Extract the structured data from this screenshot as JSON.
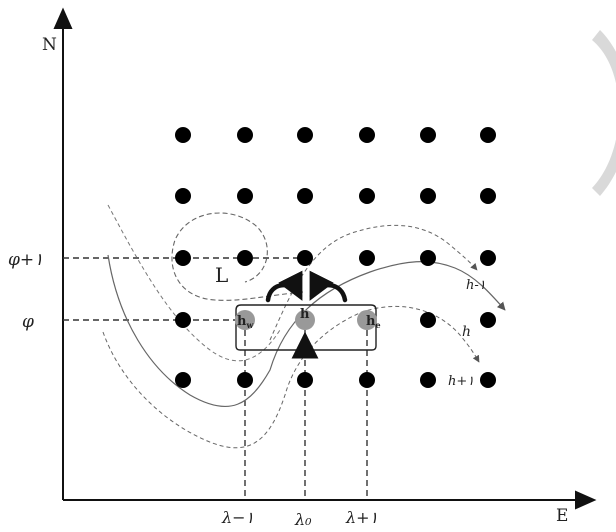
{
  "axes": {
    "y_label": "N",
    "x_label": "E"
  },
  "grid": {
    "rows": 5,
    "cols": 6
  },
  "lat_labels": {
    "phi_plus": "φ+١",
    "phi": "φ"
  },
  "lon_labels": {
    "lambda_minus": "λ−١",
    "lambda_0": "λ₀",
    "lambda_plus": "λ+١"
  },
  "region_label": "L",
  "node_labels": {
    "h_w": "h",
    "h_w_sub": "w",
    "h_center": "h",
    "h_e": "h",
    "h_e_sub": "e"
  },
  "contour_labels": {
    "h_minus": "h-١",
    "h": "h",
    "h_plus": "h+١"
  },
  "colors": {
    "dot": "#000000",
    "highlight_node": "#999999",
    "dashed_line": "#333333",
    "contour": "#555555"
  }
}
